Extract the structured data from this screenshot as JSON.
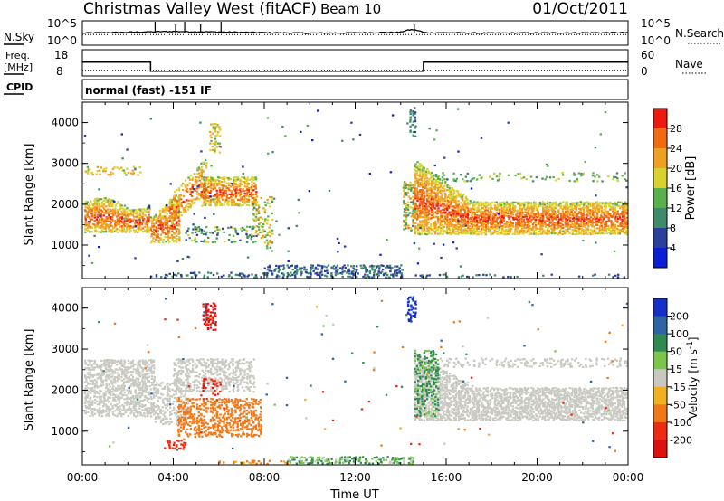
{
  "header": {
    "title": "Christmas Valley West (fitACF)",
    "beam": "Beam 10",
    "date": "01/Oct/2011"
  },
  "strip_labels": {
    "nsky": "N.Sky",
    "nsearch": "N.Search",
    "freq_line1": "Freq.",
    "freq_line2": "[MHz]",
    "nave": "Nave",
    "cpid": "CPID",
    "cpid_text": "normal (fast) -151 IF"
  },
  "strip_ticks": {
    "noise_left": [
      "10^5",
      "10^0"
    ],
    "noise_right": [
      "10^5",
      "10^0"
    ],
    "freq_left": [
      "18",
      "8"
    ],
    "freq_right": [
      "60",
      "0"
    ]
  },
  "axes": {
    "ylabel": "Slant Range [km]",
    "xlabel": "Time UT",
    "x_ticks": [
      "00:00",
      "04:00",
      "08:00",
      "12:00",
      "16:00",
      "20:00",
      "00:00"
    ],
    "y_ticks": [
      "1000",
      "2000",
      "3000",
      "4000"
    ]
  },
  "colorbars": {
    "power": {
      "label": "Power [dB]",
      "ticks": [
        "4",
        "8",
        "12",
        "16",
        "20",
        "24",
        "28"
      ],
      "colors": [
        "#0a1ed8",
        "#2b3f9e",
        "#3f8a6a",
        "#59b14c",
        "#d9d12d",
        "#f0a020",
        "#f26a10",
        "#ee1a10"
      ]
    },
    "velocity": {
      "label": "Velocity [m s",
      "label_sup": "-1",
      "label_end": "]",
      "ticks": [
        "200",
        "100",
        "50",
        "15",
        "-15",
        "-50",
        "-100",
        "-200"
      ],
      "colors": [
        "#1530c8",
        "#2c64a6",
        "#2f8a52",
        "#7ac64a",
        "#c8c8c0",
        "#f0b020",
        "#f07818",
        "#ee2a10",
        "#e01010"
      ]
    }
  },
  "chart_data": [
    {
      "type": "line",
      "title": "N.Sky / N.Search",
      "xlim": [
        "00:00",
        "24:00"
      ],
      "ylim": [
        1,
        100000
      ],
      "scale": "log",
      "description_series": [
        {
          "name": "N.Sky",
          "x": [
            0,
            2,
            4,
            6,
            8,
            10,
            12,
            14,
            14.5,
            15,
            18,
            21,
            24
          ],
          "values": [
            300,
            500,
            800,
            600,
            400,
            300,
            350,
            500,
            2500,
            400,
            300,
            350,
            400
          ]
        }
      ]
    },
    {
      "type": "line",
      "title": "Freq / Nave",
      "xlim": [
        "00:00",
        "24:00"
      ],
      "ylim": [
        8,
        18
      ],
      "series": [
        {
          "name": "Freq. [MHz]",
          "x": [
            0,
            3.0,
            3.0,
            15.0,
            15.0,
            24
          ],
          "values": [
            15.5,
            15.5,
            10.2,
            10.2,
            15.5,
            15.5
          ]
        },
        {
          "name": "Nave",
          "x": [
            0,
            24
          ],
          "values": [
            15,
            15
          ]
        }
      ]
    },
    {
      "type": "heatmap",
      "title": "Power [dB]",
      "xlim": [
        "00:00",
        "24:00"
      ],
      "ylim": [
        180,
        4500
      ],
      "zrange": [
        0,
        30
      ],
      "features": [
        {
          "time_range": [
            "00:00",
            "03:00"
          ],
          "range_km": [
            1300,
            2100
          ],
          "power_db": 28
        },
        {
          "time_range": [
            "03:00",
            "07:30"
          ],
          "range_km": [
            1100,
            2600
          ],
          "power_db": 26
        },
        {
          "time_range": [
            "14:30",
            "24:00"
          ],
          "range_km": [
            1300,
            2000
          ],
          "power_db": 28
        },
        {
          "time_range": [
            "08:00",
            "14:00"
          ],
          "range_km": [
            200,
            500
          ],
          "power_db": 8
        }
      ]
    },
    {
      "type": "heatmap",
      "title": "Velocity [m s-1]",
      "xlim": [
        "00:00",
        "24:00"
      ],
      "ylim": [
        180,
        4500
      ],
      "zrange": [
        -200,
        200
      ],
      "features": [
        {
          "time_range": [
            "00:00",
            "04:00"
          ],
          "range_km": [
            1400,
            2700
          ],
          "velocity": 0
        },
        {
          "time_range": [
            "05:00",
            "08:00"
          ],
          "range_km": [
            700,
            2000
          ],
          "velocity": -40
        },
        {
          "time_range": [
            "05:20",
            "05:50"
          ],
          "range_km": [
            3500,
            4100
          ],
          "velocity": -200
        },
        {
          "time_range": [
            "14:30",
            "24:00"
          ],
          "range_km": [
            1300,
            2800
          ],
          "velocity": 0
        },
        {
          "time_range": [
            "14:20",
            "14:40"
          ],
          "range_km": [
            3700,
            4300
          ],
          "velocity": 200
        }
      ]
    }
  ]
}
